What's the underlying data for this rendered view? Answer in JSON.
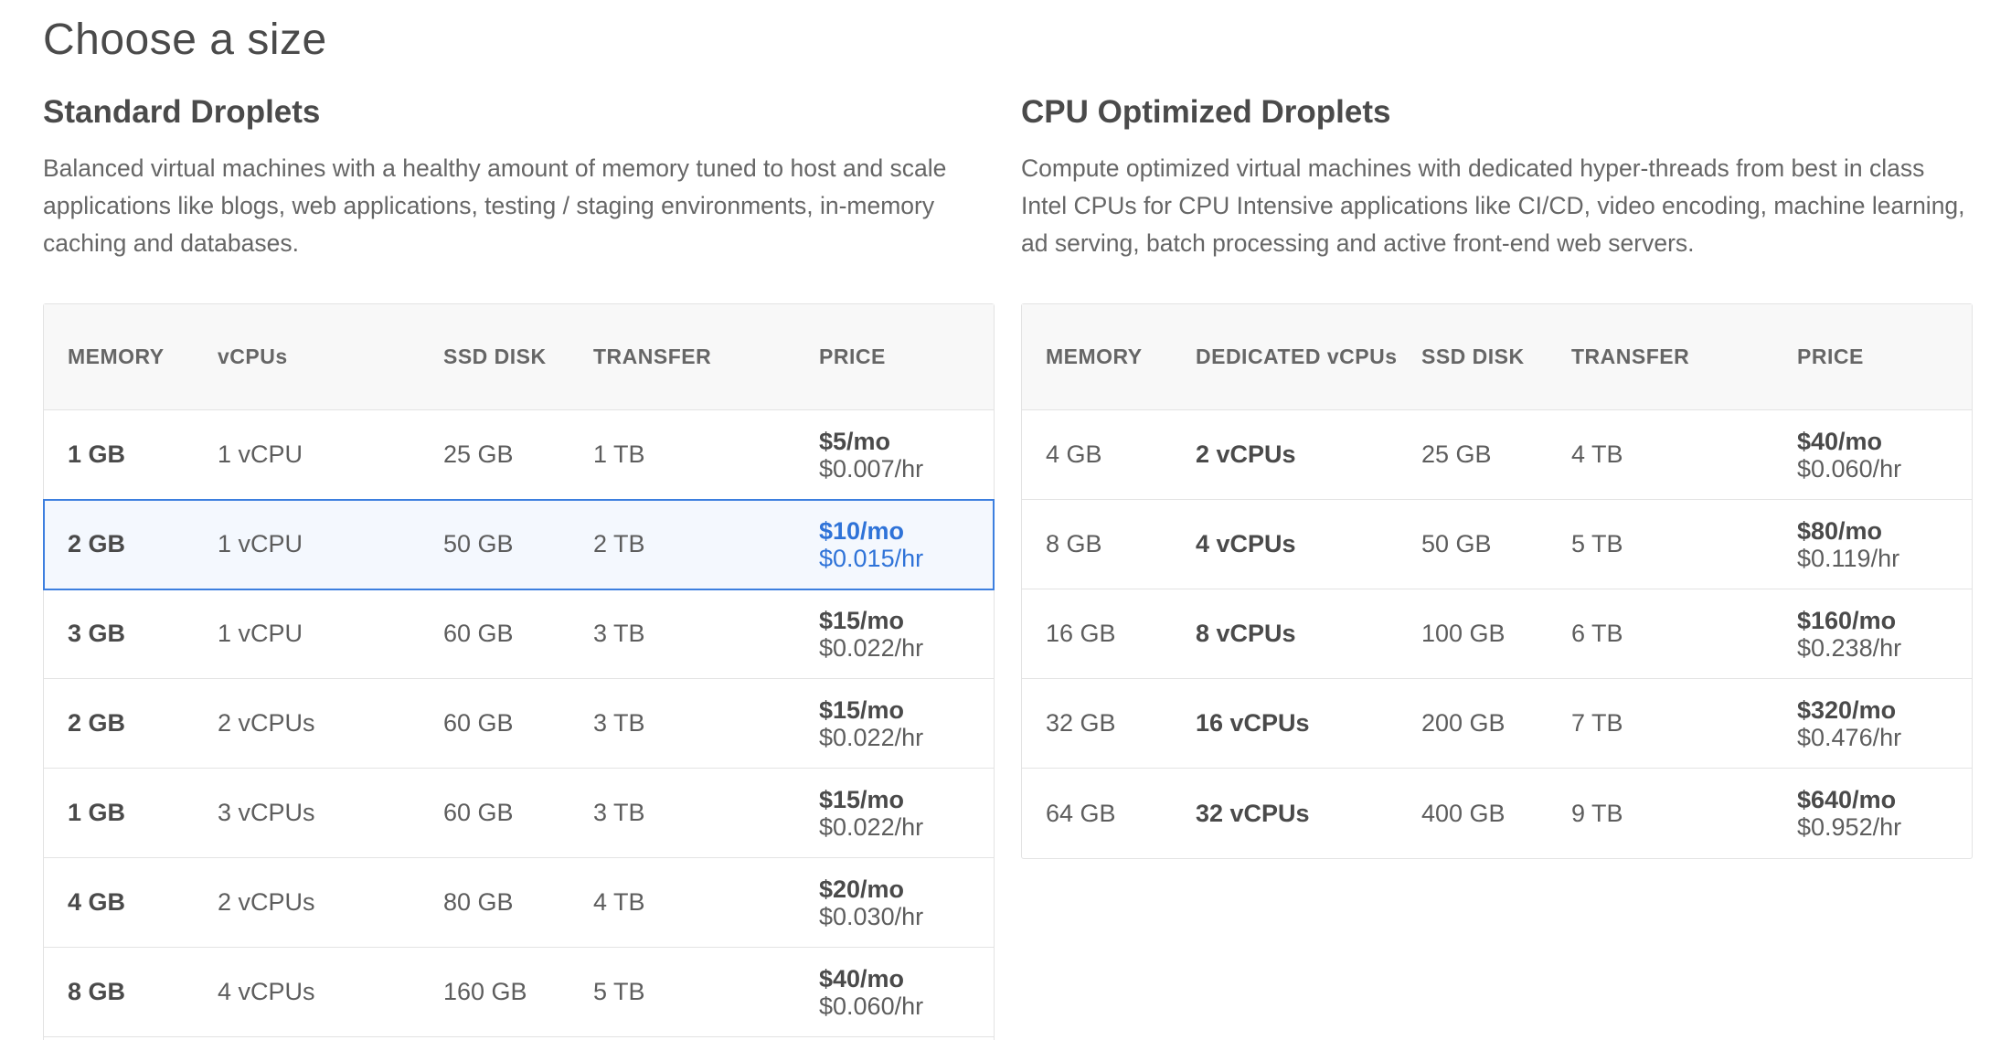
{
  "page": {
    "title": "Choose a size"
  },
  "standard": {
    "title": "Standard Droplets",
    "description": "Balanced virtual machines with a healthy amount of memory tuned to host and scale applications like blogs, web applications, testing / staging environments, in-memory caching and databases.",
    "headers": [
      "MEMORY",
      "vCPUs",
      "SSD DISK",
      "TRANSFER",
      "PRICE"
    ],
    "selected_index": 1,
    "rows": [
      {
        "memory": "1 GB",
        "vcpus": "1 vCPU",
        "disk": "25 GB",
        "transfer": "1 TB",
        "price_mo": "$5/mo",
        "price_hr": "$0.007/hr"
      },
      {
        "memory": "2 GB",
        "vcpus": "1 vCPU",
        "disk": "50 GB",
        "transfer": "2 TB",
        "price_mo": "$10/mo",
        "price_hr": "$0.015/hr"
      },
      {
        "memory": "3 GB",
        "vcpus": "1 vCPU",
        "disk": "60 GB",
        "transfer": "3 TB",
        "price_mo": "$15/mo",
        "price_hr": "$0.022/hr"
      },
      {
        "memory": "2 GB",
        "vcpus": "2 vCPUs",
        "disk": "60 GB",
        "transfer": "3 TB",
        "price_mo": "$15/mo",
        "price_hr": "$0.022/hr"
      },
      {
        "memory": "1 GB",
        "vcpus": "3 vCPUs",
        "disk": "60 GB",
        "transfer": "3 TB",
        "price_mo": "$15/mo",
        "price_hr": "$0.022/hr"
      },
      {
        "memory": "4 GB",
        "vcpus": "2 vCPUs",
        "disk": "80 GB",
        "transfer": "4 TB",
        "price_mo": "$20/mo",
        "price_hr": "$0.030/hr"
      },
      {
        "memory": "8 GB",
        "vcpus": "4 vCPUs",
        "disk": "160 GB",
        "transfer": "5 TB",
        "price_mo": "$40/mo",
        "price_hr": "$0.060/hr"
      }
    ]
  },
  "cpu": {
    "title": "CPU Optimized Droplets",
    "description": "Compute optimized virtual machines with dedicated hyper-threads from best in class Intel CPUs for CPU Intensive applications like CI/CD, video encoding, machine learning, ad serving, batch processing and active front-end web servers.",
    "headers": [
      "MEMORY",
      "DEDICATED vCPUs",
      "SSD DISK",
      "TRANSFER",
      "PRICE"
    ],
    "rows": [
      {
        "memory": "4 GB",
        "vcpus": "2 vCPUs",
        "disk": "25 GB",
        "transfer": "4 TB",
        "price_mo": "$40/mo",
        "price_hr": "$0.060/hr"
      },
      {
        "memory": "8 GB",
        "vcpus": "4 vCPUs",
        "disk": "50 GB",
        "transfer": "5 TB",
        "price_mo": "$80/mo",
        "price_hr": "$0.119/hr"
      },
      {
        "memory": "16 GB",
        "vcpus": "8 vCPUs",
        "disk": "100 GB",
        "transfer": "6 TB",
        "price_mo": "$160/mo",
        "price_hr": "$0.238/hr"
      },
      {
        "memory": "32 GB",
        "vcpus": "16 vCPUs",
        "disk": "200 GB",
        "transfer": "7 TB",
        "price_mo": "$320/mo",
        "price_hr": "$0.476/hr"
      },
      {
        "memory": "64 GB",
        "vcpus": "32 vCPUs",
        "disk": "400 GB",
        "transfer": "9 TB",
        "price_mo": "$640/mo",
        "price_hr": "$0.952/hr"
      }
    ]
  },
  "colors": {
    "accent": "#3d7fdf",
    "selected_bg": "#f4f8fe",
    "text": "#4a4a4a",
    "border": "#e3e3e3"
  }
}
